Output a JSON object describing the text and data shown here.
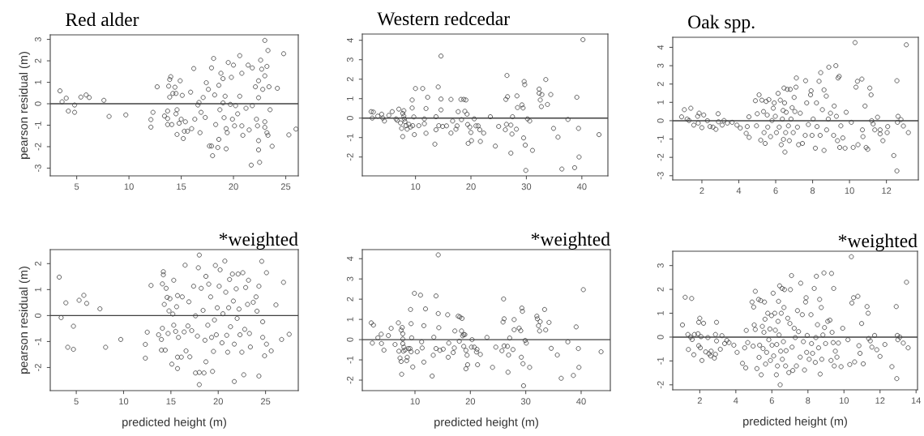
{
  "chart_data": [
    {
      "type": "scatter",
      "title": "Red alder",
      "ylabel": "pearson residual (m)",
      "marker": "circle",
      "grid": false,
      "xlim": [
        2.47,
        26.2
      ],
      "ylim": [
        -3.36,
        3.21
      ],
      "xticks": [
        5,
        10,
        15,
        20,
        25
      ],
      "yticks": [
        -3,
        -2,
        -1,
        0,
        1,
        2,
        3
      ],
      "ref_lines": [
        {
          "axis": "y",
          "value": 0,
          "color": "#404040"
        }
      ],
      "series": [
        {
          "color": "#404040",
          "x": [
            3.4,
            3.6,
            4.0,
            4.2,
            4.8,
            4.8,
            5.4,
            5.9,
            6.2,
            7.6,
            8.1,
            9.7,
            12.1,
            12.1,
            12.3,
            12.7,
            13.4,
            13.7,
            13.7,
            13.8,
            13.9,
            14.0,
            13.9,
            13.7,
            14.1,
            14.2,
            14.4,
            14.5,
            14.6,
            14.5,
            14.6,
            14.8,
            14.9,
            15.0,
            15.1,
            15.3,
            15.2,
            15.4,
            15.6,
            15.9,
            16.0,
            16.2,
            16.3,
            16.6,
            16.7,
            16.8,
            16.9,
            17.1,
            17.3,
            17.4,
            17.6,
            17.7,
            17.9,
            17.9,
            18.1,
            18.0,
            18.2,
            18.3,
            18.5,
            18.6,
            18.6,
            18.7,
            18.8,
            19.0,
            19.0,
            19.1,
            19.2,
            19.3,
            19.3,
            19.4,
            19.5,
            19.7,
            19.8,
            19.9,
            20.0,
            20.1,
            20.2,
            20.4,
            20.6,
            20.6,
            20.8,
            20.8,
            20.9,
            21.2,
            21.4,
            21.5,
            21.7,
            21.8,
            21.8,
            22.1,
            22.2,
            22.3,
            22.4,
            22.5,
            22.6,
            22.8,
            23.0,
            23.0,
            23.2,
            23.3,
            23.4,
            23.5,
            22.7,
            23.0,
            23.3,
            23.0,
            23.2,
            22.4,
            23.7,
            24.2,
            24.8,
            25.3,
            25.98,
            22.4,
            22.4
          ],
          "values": [
            0.6,
            0.09,
            0.26,
            -0.34,
            -0.06,
            -0.4,
            0.31,
            0.41,
            0.29,
            0.16,
            -0.59,
            -0.52,
            -0.74,
            -1.09,
            -0.4,
            0.79,
            -0.57,
            -0.69,
            -0.34,
            0.82,
            1.13,
            1.26,
            0.31,
            -0.97,
            -0.97,
            0.48,
            0.77,
            -0.47,
            -0.28,
            0.48,
            -1.43,
            -0.91,
            1.07,
            -0.72,
            0.39,
            -1.28,
            -1.62,
            -0.84,
            -1.28,
            0.54,
            -1.16,
            1.64,
            -0.72,
            -0.06,
            0.06,
            -1.35,
            -0.4,
            0.29,
            -0.64,
            0.98,
            0.67,
            -1.97,
            1.67,
            -1.97,
            2.11,
            -2.42,
            0.41,
            -0.97,
            -2.04,
            0.86,
            -1.66,
            -0.28,
            1.42,
            1.17,
            0.04,
            -0.65,
            0.35,
            -2.1,
            -1.16,
            -1.35,
            1.92,
            -0.03,
            1.23,
            -0.72,
            1.8,
            -1.03,
            -0.09,
            -0.47,
            0.35,
            2.24,
            1.42,
            -1.03,
            -1.47,
            -0.21,
            1.8,
            -1.22,
            -2.86,
            -0.09,
            1.67,
            0.79,
            -0.72,
            -1.03,
            -1.72,
            -2.73,
            2.03,
            0.67,
            1.3,
            -0.84,
            1.74,
            -1.47,
            0.79,
            -0.28,
            1.61,
            2.95,
            2.48,
            -1.1,
            -1.35,
            -2.15,
            -1.98,
            0.72,
            2.33,
            -1.45,
            -1.18,
            1.07,
            0.28
          ]
        }
      ]
    },
    {
      "type": "scatter",
      "title": "Western redcedar",
      "marker": "circle",
      "grid": false,
      "xlim": [
        0.41,
        44.7
      ],
      "ylim": [
        -2.97,
        4.32
      ],
      "xticks": [
        10,
        20,
        30,
        40
      ],
      "yticks": [
        -2,
        -1,
        0,
        1,
        2,
        3,
        4
      ],
      "ref_lines": [
        {
          "axis": "y",
          "value": 0,
          "color": "#404040"
        }
      ],
      "series": [
        {
          "color": "#404040",
          "x": [
            2.0,
            2.4,
            2.2,
            3.2,
            3.9,
            4.1,
            4.4,
            5.2,
            5.8,
            6.5,
            6.7,
            7.0,
            7.3,
            7.5,
            7.7,
            7.7,
            7.9,
            7.9,
            8.0,
            8.1,
            8.3,
            8.5,
            8.8,
            9.1,
            9.4,
            9.4,
            9.5,
            9.8,
            9.7,
            10.0,
            10.6,
            11.3,
            11.6,
            11.6,
            11.9,
            11.9,
            12.2,
            13.5,
            13.7,
            13.7,
            14.1,
            14.2,
            14.6,
            14.6,
            14.6,
            14.9,
            15.6,
            16.4,
            16.4,
            16.7,
            17.3,
            17.5,
            17.7,
            18.2,
            18.3,
            18.7,
            18.9,
            19.1,
            19.3,
            19.4,
            19.5,
            19.8,
            20.0,
            20.1,
            20.6,
            20.9,
            21.3,
            21.6,
            21.7,
            22.3,
            23.5,
            24.4,
            25.0,
            26.3,
            26.5,
            26.6,
            26.4,
            26.2,
            27.2,
            27.2,
            27.4,
            27.5,
            28.2,
            28.3,
            28.4,
            29.2,
            29.4,
            29.5,
            29.6,
            29.7,
            29.8,
            29.9,
            30.2,
            30.6,
            31.1,
            32.3,
            32.3,
            32.5,
            32.7,
            32.8,
            33.5,
            33.8,
            34.4,
            34.9,
            35.7,
            36.4,
            37.5,
            38.7,
            39.1,
            39.4,
            39.5,
            40.2,
            43.1
          ],
          "values": [
            0.33,
            0.31,
            0.0,
            0.1,
            0.2,
            0.0,
            -0.15,
            0.14,
            0.33,
            -0.04,
            -0.11,
            0.46,
            -0.25,
            -0.53,
            -0.95,
            0.24,
            0.38,
            0.1,
            -0.04,
            -0.18,
            -0.39,
            -0.57,
            -0.32,
            -0.46,
            0.93,
            0.52,
            -0.39,
            -0.85,
            0.06,
            1.52,
            -0.39,
            1.52,
            -0.04,
            -0.29,
            0.49,
            -0.78,
            1.07,
            -1.34,
            0.07,
            -0.6,
            1.6,
            -0.39,
            3.19,
            0.98,
            0.42,
            -0.43,
            -0.4,
            0.96,
            -0.77,
            -0.15,
            -0.57,
            -0.4,
            0.33,
            0.96,
            -0.08,
            0.96,
            0.35,
            0.93,
            0.2,
            -0.33,
            -1.3,
            -0.46,
            -0.74,
            -1.16,
            -0.04,
            -0.4,
            -0.4,
            -0.6,
            -1.2,
            -0.77,
            0.07,
            -1.44,
            -0.43,
            0.96,
            2.19,
            1.1,
            -0.32,
            -0.6,
            -0.36,
            -1.8,
            -0.82,
            0.07,
            -0.57,
            1.14,
            0.54,
            0.68,
            0.52,
            -1.02,
            1.88,
            1.72,
            -1.39,
            -2.69,
            -0.04,
            -0.15,
            -1.66,
            1.49,
            1.28,
            0.93,
            0.59,
            1.21,
            1.98,
            0.7,
            1.21,
            -0.53,
            -0.98,
            -2.62,
            -0.07,
            -2.55,
            1.07,
            -0.53,
            -2.0,
            4.03,
            -0.85
          ]
        }
      ]
    },
    {
      "type": "scatter",
      "title": "Oak spp.",
      "marker": "circle",
      "grid": false,
      "xlim": [
        0.42,
        13.73
      ],
      "ylim": [
        -3.23,
        4.55
      ],
      "xticks": [
        2,
        4,
        6,
        8,
        10,
        12
      ],
      "yticks": [
        -3,
        -2,
        -1,
        0,
        1,
        2,
        3,
        4
      ],
      "ref_lines": [
        {
          "axis": "y",
          "value": 0,
          "color": "#404040"
        }
      ],
      "series": [
        {
          "color": "#404040",
          "x": [
            0.9,
            1.05,
            1.2,
            1.3,
            1.4,
            1.56,
            1.77,
            1.85,
            1.8,
            2.0,
            2.1,
            2.3,
            2.44,
            2.6,
            2.76,
            2.88,
            2.9,
            3.1,
            3.2,
            3.38,
            3.64,
            3.9,
            4.08,
            4.4,
            4.46,
            4.55,
            4.56,
            4.9,
            4.96,
            5.0,
            5.1,
            5.19,
            5.25,
            5.34,
            5.37,
            5.43,
            5.48,
            5.54,
            5.57,
            5.63,
            5.72,
            5.8,
            5.87,
            5.92,
            5.98,
            6.04,
            6.13,
            6.19,
            6.25,
            6.3,
            6.36,
            6.4,
            6.42,
            6.45,
            6.48,
            6.5,
            6.54,
            6.57,
            6.63,
            6.69,
            6.74,
            6.79,
            6.83,
            6.89,
            6.95,
            7.0,
            7.04,
            7.1,
            7.12,
            7.18,
            7.24,
            7.33,
            7.45,
            7.6,
            7.62,
            7.68,
            7.77,
            7.89,
            7.92,
            7.97,
            8.03,
            8.15,
            8.21,
            8.24,
            8.35,
            8.41,
            8.44,
            8.53,
            8.62,
            8.62,
            8.74,
            8.76,
            8.85,
            8.88,
            8.97,
            9.14,
            9.17,
            9.26,
            9.29,
            9.35,
            9.38,
            9.44,
            9.47,
            9.53,
            9.64,
            9.76,
            9.82,
            10.1,
            10.2,
            10.3,
            10.35,
            10.43,
            10.46,
            10.67,
            10.7,
            10.73,
            10.84,
            10.9,
            10.99,
            11.1,
            11.17,
            11.2,
            11.28,
            11.37,
            11.52,
            11.66,
            11.66,
            11.81,
            12.04,
            12.07,
            12.4,
            12.57,
            12.57,
            12.63,
            12.6,
            12.79,
            12.92,
            13.08,
            13.19
          ],
          "values": [
            0.21,
            0.6,
            0.09,
            0.01,
            0.68,
            -0.24,
            0.24,
            0.41,
            -0.13,
            -0.38,
            0.31,
            0.0,
            -0.32,
            -0.35,
            -0.47,
            0.38,
            -0.06,
            -0.24,
            0.01,
            -0.13,
            -0.09,
            -0.24,
            -0.4,
            -0.69,
            -0.32,
            0.21,
            -0.91,
            1.09,
            -0.28,
            0.38,
            1.41,
            -1.06,
            1.12,
            0.5,
            -0.65,
            -1.24,
            1.05,
            0.31,
            -0.35,
            1.15,
            -0.87,
            0.01,
            0.68,
            0.97,
            0.24,
            -0.65,
            1.49,
            -0.35,
            1.12,
            -1.31,
            0.09,
            0.56,
            -1.02,
            1.78,
            0.97,
            -1.71,
            -0.65,
            0.46,
            1.71,
            -0.28,
            -1.09,
            1.71,
            0.09,
            0.71,
            -0.65,
            1.27,
            0.5,
            1.83,
            2.33,
            -0.35,
            -1.31,
            0.41,
            -1.24,
            -0.8,
            2.18,
            0.97,
            -0.21,
            1.41,
            1.63,
            -0.8,
            0.09,
            -1.5,
            0.97,
            -0.32,
            2.15,
            -0.8,
            2.62,
            0.6,
            1.68,
            -1.62,
            1.34,
            -0.5,
            0.09,
            2.92,
            0.41,
            -0.8,
            0.8,
            3.0,
            0.24,
            -1.09,
            2.33,
            2.42,
            -1.46,
            -0.28,
            -0.94,
            -1.5,
            0.46,
            -0.09,
            -1.46,
            4.26,
            1.83,
            2.15,
            -1.31,
            2.27,
            -0.5,
            -0.87,
            0.8,
            -1.46,
            -1.56,
            1.78,
            1.41,
            0.0,
            -0.18,
            -0.5,
            0.19,
            -0.5,
            -0.72,
            -1.09,
            -0.65,
            -0.32,
            -1.9,
            2.18,
            -2.74,
            0.24,
            -0.09,
            0.06,
            -0.29,
            4.14,
            -0.65
          ]
        }
      ]
    },
    {
      "type": "scatter",
      "title": "*weighted",
      "xlabel": "predicted height (m)",
      "ylabel": "pearson residual (m)",
      "marker": "circle",
      "grid": false,
      "xlim": [
        2.25,
        28.46
      ],
      "ylim": [
        -2.89,
        2.54
      ],
      "xticks": [
        5,
        10,
        15,
        20,
        25
      ],
      "yticks": [
        -2,
        -1,
        0,
        1,
        2
      ],
      "ref_lines": [
        {
          "axis": "y",
          "value": 0,
          "color": "#404040"
        }
      ],
      "series": [
        {
          "color": "#404040",
          "x": [
            3.2,
            3.4,
            3.9,
            4.1,
            4.7,
            4.7,
            5.3,
            5.8,
            6.1,
            7.5,
            8.1,
            9.7,
            12.3,
            12.3,
            12.5,
            12.9,
            13.7,
            14.0,
            14.0,
            14.1,
            14.1,
            14.2,
            14.2,
            14.3,
            14.4,
            14.5,
            14.6,
            14.7,
            14.8,
            14.9,
            15.1,
            15.2,
            15.3,
            15.3,
            15.5,
            15.6,
            15.7,
            15.7,
            15.7,
            15.8,
            16.1,
            16.2,
            16.4,
            16.5,
            16.6,
            16.8,
            16.9,
            17.0,
            17.2,
            17.4,
            17.6,
            17.6,
            17.8,
            17.9,
            18.0,
            18.0,
            18.0,
            18.2,
            18.4,
            18.5,
            18.6,
            18.7,
            18.7,
            18.9,
            19.0,
            19.2,
            19.3,
            19.4,
            19.5,
            19.6,
            19.7,
            19.8,
            19.9,
            20.1,
            20.2,
            20.4,
            20.5,
            20.7,
            20.8,
            20.9,
            21.0,
            21.1,
            21.2,
            21.3,
            21.5,
            21.6,
            21.7,
            21.7,
            21.9,
            22.0,
            22.1,
            22.2,
            22.3,
            22.5,
            22.6,
            22.7,
            22.8,
            22.9,
            23.1,
            23.2,
            23.3,
            23.4,
            23.7,
            24.0,
            24.1,
            24.3,
            24.3,
            24.6,
            24.7,
            24.7,
            24.9,
            25.1,
            25.1,
            25.6,
            26.1,
            26.7,
            26.9,
            27.5
          ],
          "values": [
            1.48,
            -0.08,
            0.49,
            -1.22,
            -0.41,
            -1.3,
            0.59,
            0.78,
            0.47,
            0.26,
            -1.22,
            -0.92,
            -1.64,
            -1.11,
            -0.64,
            1.16,
            -0.74,
            -0.92,
            -1.33,
            1.22,
            -0.49,
            1.57,
            1.69,
            0.43,
            -1.33,
            1.05,
            0.7,
            -0.69,
            0.18,
            0.65,
            -1.87,
            0.06,
            -0.37,
            1.36,
            -0.61,
            0.34,
            0.77,
            -1.6,
            -2.04,
            -0.84,
            -1.6,
            0.72,
            -0.63,
            1.94,
            -1.36,
            -0.4,
            0.53,
            -1.59,
            -0.58,
            1.13,
            -2.21,
            -0.01,
            -0.79,
            1.84,
            2.33,
            -2.19,
            -2.66,
            1.05,
            0.2,
            -2.21,
            -0.95,
            1.51,
            -1.78,
            -0.37,
            1.21,
            0.72,
            -0.84,
            -2.15,
            -1.38,
            -0.17,
            1.93,
            -0.74,
            0.3,
            1.13,
            1.76,
            -1.05,
            0.07,
            2.1,
            0.9,
            -0.76,
            -1.41,
            0.3,
            1.39,
            -0.43,
            1.6,
            0.56,
            -1.1,
            -2.54,
            1.03,
            -0.11,
            1.6,
            0.25,
            -0.74,
            -1.41,
            1.65,
            -2.28,
            -0.53,
            1.08,
            0.43,
            1.36,
            -0.69,
            -1.21,
            0.51,
            0.72,
            0.17,
            1.13,
            -2.33,
            2.09,
            -0.24,
            -0.84,
            -1.55,
            1.65,
            -1.1,
            -1.36,
            0.41,
            -0.92,
            1.28,
            -0.72
          ]
        }
      ]
    },
    {
      "type": "scatter",
      "title": "*weighted",
      "xlabel": "predicted height (m)",
      "marker": "circle",
      "grid": false,
      "xlim": [
        0.49,
        45.27
      ],
      "ylim": [
        -2.52,
        4.45
      ],
      "xticks": [
        10,
        20,
        30,
        40
      ],
      "yticks": [
        -2,
        -1,
        0,
        1,
        2,
        3,
        4
      ],
      "ref_lines": [
        {
          "axis": "y",
          "value": 0,
          "color": "#404040"
        }
      ],
      "series": [
        {
          "color": "#404040",
          "x": [
            2.1,
            2.5,
            2.3,
            3.3,
            3.9,
            3.95,
            4.4,
            5.2,
            5.7,
            6.4,
            7.0,
            7.1,
            7.3,
            7.5,
            7.6,
            7.5,
            7.7,
            7.8,
            7.8,
            7.8,
            7.9,
            8.0,
            8.2,
            8.5,
            8.6,
            8.8,
            9.1,
            9.2,
            9.3,
            9.3,
            9.4,
            9.6,
            9.9,
            10.4,
            11.0,
            11.2,
            11.3,
            11.6,
            11.6,
            11.9,
            13.1,
            13.3,
            13.4,
            13.8,
            13.8,
            14.2,
            14.2,
            14.3,
            14.5,
            15.1,
            15.9,
            16.0,
            16.1,
            16.9,
            17.1,
            17.2,
            17.8,
            18.1,
            18.0,
            18.4,
            18.5,
            18.6,
            18.8,
            18.8,
            19.0,
            19.2,
            19.2,
            19.4,
            19.5,
            20.3,
            20.2,
            20.7,
            21.1,
            21.2,
            21.3,
            21.8,
            23.0,
            24.0,
            24.6,
            25.7,
            25.9,
            26.1,
            26.1,
            26.0,
            26.7,
            26.8,
            26.9,
            27.1,
            27.7,
            27.9,
            27.9,
            28.8,
            29.1,
            29.2,
            29.3,
            29.4,
            29.5,
            29.6,
            29.9,
            30.1,
            30.7,
            32.0,
            32.1,
            32.3,
            32.5,
            32.6,
            33.4,
            33.6,
            34.2,
            34.6,
            35.7,
            36.4,
            37.6,
            38.6,
            39.1,
            39.5,
            39.6,
            40.4,
            43.6
          ],
          "values": [
            0.83,
            0.72,
            -0.17,
            0.09,
            0.27,
            -0.19,
            -0.52,
            0.2,
            0.56,
            -0.24,
            0.83,
            -0.57,
            -0.91,
            -1.08,
            -1.71,
            0.47,
            0.6,
            0.29,
            0.03,
            -0.2,
            -0.57,
            -0.37,
            -0.51,
            -1.04,
            -0.87,
            -0.44,
            -0.44,
            1.49,
            0.79,
            -0.6,
            0.09,
            -1.35,
            2.29,
            -0.6,
            2.2,
            -0.11,
            -0.41,
            0.69,
            -1.11,
            1.52,
            -1.8,
            -0.77,
            0.12,
            2.16,
            -0.44,
            1.29,
            4.19,
            0.59,
            -0.53,
            -0.47,
            1.23,
            -0.87,
            -0.17,
            -0.64,
            -0.41,
            0.43,
            1.16,
            1.12,
            -0.08,
            0.43,
            1.05,
            0.19,
            0.25,
            -0.33,
            0.25,
            -1.44,
            -0.53,
            -0.77,
            -1.24,
            0.0,
            -0.37,
            -0.37,
            -0.61,
            -0.48,
            -1.24,
            -0.73,
            0.11,
            -1.37,
            -0.37,
            -0.55,
            0.87,
            -0.31,
            1.03,
            2.01,
            -0.33,
            -1.61,
            -0.76,
            0.08,
            -0.49,
            0.49,
            0.99,
            0.57,
            0.44,
            -0.87,
            1.56,
            1.4,
            -1.19,
            -2.28,
            -0.04,
            -0.17,
            -1.37,
            1.16,
            1.03,
            0.69,
            0.43,
            0.89,
            1.49,
            0.48,
            0.85,
            -0.43,
            -0.76,
            -1.91,
            -0.11,
            -1.77,
            0.63,
            -0.44,
            -1.37,
            2.47,
            -0.6
          ]
        }
      ]
    },
    {
      "type": "scatter",
      "title": "*weighted",
      "xlabel": "predicted height (m)",
      "marker": "circle",
      "grid": false,
      "xlim": [
        0.5,
        14.08
      ],
      "ylim": [
        -2.21,
        3.6
      ],
      "xticks": [
        2,
        4,
        6,
        8,
        10,
        12,
        14
      ],
      "yticks": [
        -2,
        -1,
        0,
        1,
        2,
        3
      ],
      "ref_lines": [
        {
          "axis": "y",
          "value": 0,
          "color": "#404040"
        }
      ],
      "series": [
        {
          "color": "#404040",
          "x": [
            1.04,
            1.19,
            1.34,
            1.37,
            1.49,
            1.55,
            1.58,
            1.67,
            1.7,
            1.9,
            1.94,
            2.0,
            1.94,
            2.03,
            2.07,
            2.12,
            2.21,
            2.33,
            2.45,
            2.51,
            2.6,
            2.63,
            2.81,
            2.87,
            2.87,
            2.93,
            2.93,
            3.14,
            3.23,
            3.38,
            3.5,
            3.62,
            3.89,
            4.07,
            4.37,
            4.49,
            4.55,
            4.58,
            4.66,
            4.9,
            4.96,
            4.99,
            5.02,
            5.08,
            5.08,
            5.17,
            5.26,
            5.29,
            5.32,
            5.38,
            5.41,
            5.47,
            5.51,
            5.56,
            5.59,
            5.62,
            5.65,
            5.71,
            5.77,
            5.83,
            5.89,
            5.92,
            5.98,
            6.01,
            6.07,
            6.1,
            6.16,
            6.19,
            6.25,
            6.27,
            6.31,
            6.34,
            6.37,
            6.4,
            6.43,
            6.46,
            6.49,
            6.52,
            6.57,
            6.58,
            6.64,
            6.67,
            6.7,
            6.76,
            6.79,
            6.88,
            6.94,
            7.0,
            7.03,
            7.09,
            7.12,
            7.16,
            7.24,
            7.3,
            7.36,
            7.42,
            7.48,
            7.57,
            7.6,
            7.69,
            7.75,
            7.81,
            7.87,
            7.9,
            7.93,
            7.96,
            8.07,
            8.17,
            8.2,
            8.26,
            8.35,
            8.41,
            8.44,
            8.47,
            8.53,
            8.59,
            8.65,
            8.68,
            8.74,
            8.77,
            8.83,
            8.89,
            8.92,
            8.98,
            9.1,
            9.22,
            9.28,
            9.31,
            9.34,
            9.4,
            9.43,
            9.46,
            9.52,
            9.61,
            9.69,
            9.84,
            9.93,
            10.22,
            10.32,
            10.44,
            10.41,
            10.53,
            10.59,
            10.77,
            10.83,
            10.89,
            10.98,
            11.07,
            11.28,
            11.34,
            11.37,
            11.46,
            11.55,
            11.7,
            11.82,
            12.0,
            12.27,
            12.66,
            12.9,
            12.93,
            12.96,
            12.99,
            13.1,
            13.29,
            13.47,
            13.56
          ],
          "values": [
            0.51,
            1.67,
            0.11,
            -0.52,
            0.0,
            1.62,
            -0.1,
            -0.74,
            0.11,
            0.14,
            0.62,
            0.79,
            -0.36,
            -0.45,
            0.02,
            -0.98,
            0.58,
            -0.62,
            -0.02,
            -0.7,
            -0.79,
            -0.59,
            -0.88,
            -0.72,
            0.11,
            0.62,
            -0.16,
            -0.51,
            0.06,
            -0.27,
            -0.14,
            -0.23,
            -0.34,
            -0.64,
            -1.1,
            -0.45,
            -1.29,
            0.28,
            -0.23,
            1.47,
            -0.38,
            1.26,
            0.51,
            1.92,
            0.32,
            -1.32,
            1.58,
            -0.85,
            -0.34,
            1.53,
            -1.58,
            0.45,
            -0.48,
            0.2,
            1.47,
            0.75,
            -1.13,
            -0.64,
            1.0,
            -0.11,
            0.34,
            -0.98,
            0.9,
            -0.34,
            1.84,
            -0.79,
            1.0,
            0.29,
            -1.58,
            -0.31,
            -1.21,
            0.66,
            1.5,
            0.09,
            2.15,
            -2.0,
            -0.59,
            1.0,
            2.04,
            -0.93,
            -0.19,
            1.24,
            1.99,
            -1.21,
            -0.57,
            0.79,
            -1.49,
            0.57,
            1.99,
            2.58,
            -0.42,
            -1.4,
            0.37,
            -0.02,
            -1.21,
            1.11,
            0.23,
            -0.84,
            2.26,
            0.94,
            -0.19,
            -1.38,
            1.47,
            1.65,
            -0.64,
            0.07,
            -0.93,
            0.94,
            -0.27,
            -0.68,
            2.04,
            -1.06,
            -0.02,
            2.55,
            0.52,
            -0.45,
            1.58,
            -1.55,
            1.24,
            -0.93,
            0.09,
            2.69,
            0.4,
            -0.27,
            0.66,
            0.71,
            -0.98,
            2.67,
            0.2,
            -0.23,
            2.04,
            -1.21,
            -0.59,
            -0.84,
            -0.25,
            -1.24,
            0.37,
            -0.11,
            -1.15,
            1.43,
            3.37,
            1.65,
            -1.04,
            1.71,
            -0.36,
            -0.68,
            0.57,
            -1.12,
            1.28,
            1.0,
            -0.06,
            -0.16,
            -0.42,
            0.07,
            -0.53,
            -0.81,
            -0.31,
            -1.24,
            1.28,
            -1.74,
            0.07,
            -0.11,
            0.0,
            -0.25,
            2.3,
            -0.45
          ]
        }
      ]
    }
  ]
}
